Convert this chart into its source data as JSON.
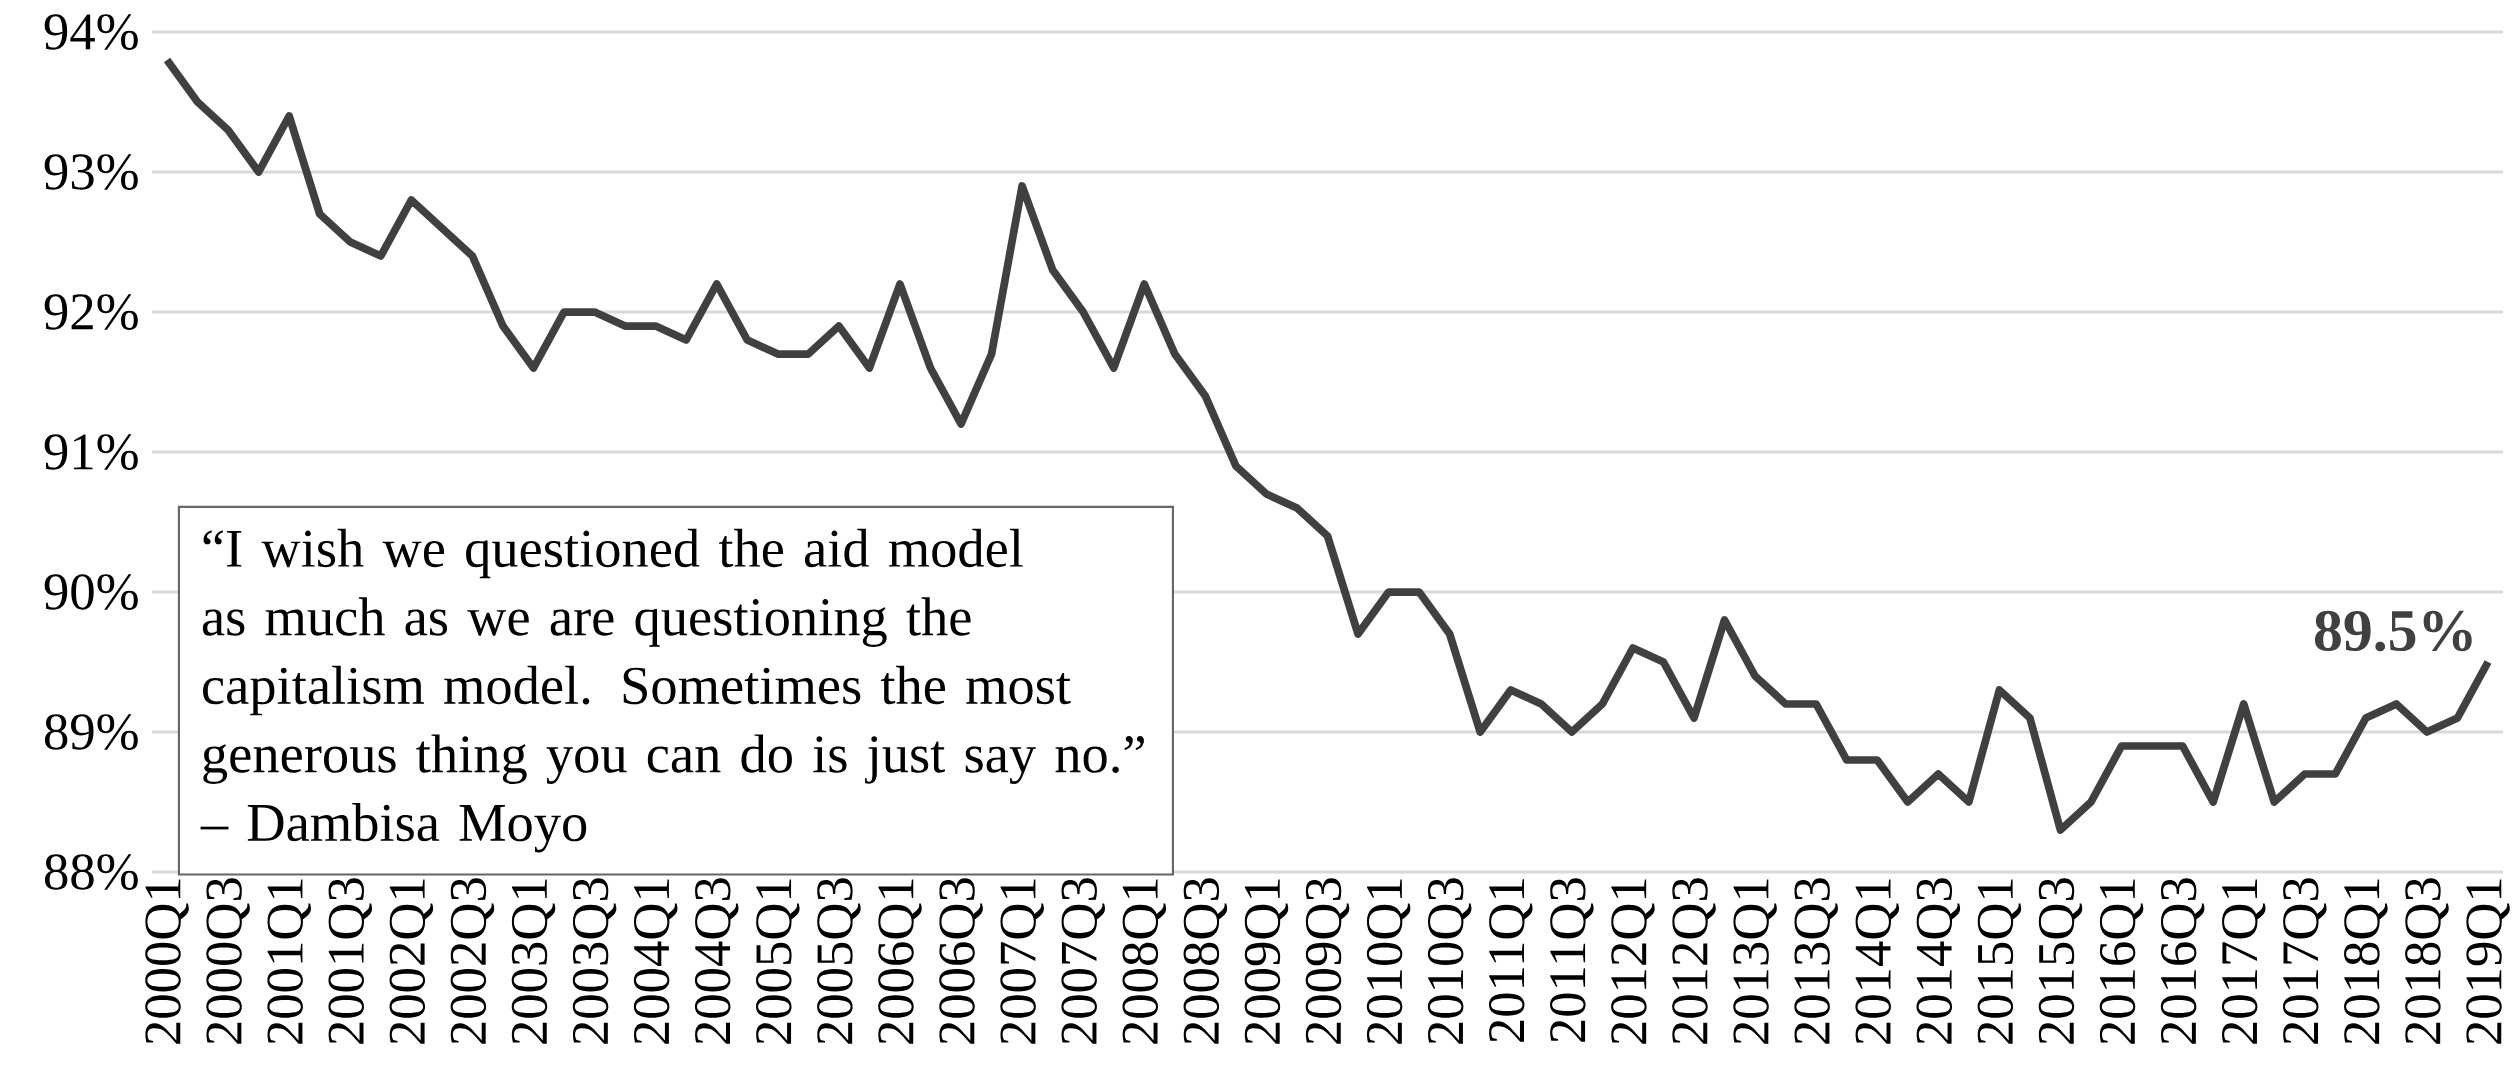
{
  "chart_data": {
    "type": "line",
    "categories": [
      "2000Q1",
      null,
      "2000Q3",
      null,
      "2001Q1",
      null,
      "2001Q3",
      null,
      "2002Q1",
      null,
      "2002Q3",
      null,
      "2003Q1",
      null,
      "2003Q3",
      null,
      "2004Q1",
      null,
      "2004Q3",
      null,
      "2005Q1",
      null,
      "2005Q3",
      null,
      "2006Q1",
      null,
      "2006Q3",
      null,
      "2007Q1",
      null,
      "2007Q3",
      null,
      "2008Q1",
      null,
      "2008Q3",
      null,
      "2009Q1",
      null,
      "2009Q3",
      null,
      "2010Q1",
      null,
      "2010Q3",
      null,
      "2011Q1",
      null,
      "2011Q3",
      null,
      "2012Q1",
      null,
      "2012Q3",
      null,
      "2013Q1",
      null,
      "2013Q3",
      null,
      "2014Q1",
      null,
      "2014Q3",
      null,
      "2015Q1",
      null,
      "2015Q3",
      null,
      "2016Q1",
      null,
      "2016Q3",
      null,
      "2017Q1",
      null,
      "2017Q3",
      null,
      "2018Q1",
      null,
      "2018Q3",
      null,
      "2019Q1"
    ],
    "series": [
      {
        "color": "#404040",
        "values": [
          93.8,
          93.5,
          93.3,
          93.0,
          93.4,
          92.7,
          92.5,
          92.4,
          92.8,
          92.6,
          92.4,
          91.9,
          91.6,
          92.0,
          92.0,
          91.9,
          91.9,
          91.8,
          92.2,
          91.8,
          91.7,
          91.7,
          91.9,
          91.6,
          92.2,
          91.6,
          91.2,
          91.7,
          92.9,
          92.3,
          92.0,
          91.6,
          92.2,
          91.7,
          91.4,
          90.9,
          90.7,
          90.6,
          90.4,
          89.7,
          90.0,
          90.0,
          89.7,
          89.0,
          89.3,
          89.2,
          89.0,
          89.2,
          89.6,
          89.5,
          89.1,
          89.8,
          89.4,
          89.2,
          89.2,
          88.8,
          88.8,
          88.5,
          88.7,
          88.5,
          89.3,
          89.1,
          88.3,
          88.5,
          88.9,
          88.9,
          88.9,
          88.5,
          89.2,
          88.5,
          88.7,
          88.7,
          89.1,
          89.2,
          89.0,
          89.1,
          89.5
        ]
      }
    ],
    "ylim": [
      88,
      94
    ],
    "yticks": [
      {
        "value": 88,
        "label": "88%"
      },
      {
        "value": 89,
        "label": "89%"
      },
      {
        "value": 90,
        "label": "90%"
      },
      {
        "value": 91,
        "label": "91%"
      },
      {
        "value": 92,
        "label": "92%"
      },
      {
        "value": 93,
        "label": "93%"
      },
      {
        "value": 94,
        "label": "94%"
      }
    ],
    "grid": "y",
    "annotations": [
      {
        "text": "89.5%",
        "x": "2019Q1",
        "y": 89.5
      },
      "“I wish we questioned the aid model as much as we are questioning the capitalism model. Sometimes the most generous thing you can do is just say no.”",
      "– Dambisa Moyo"
    ]
  }
}
